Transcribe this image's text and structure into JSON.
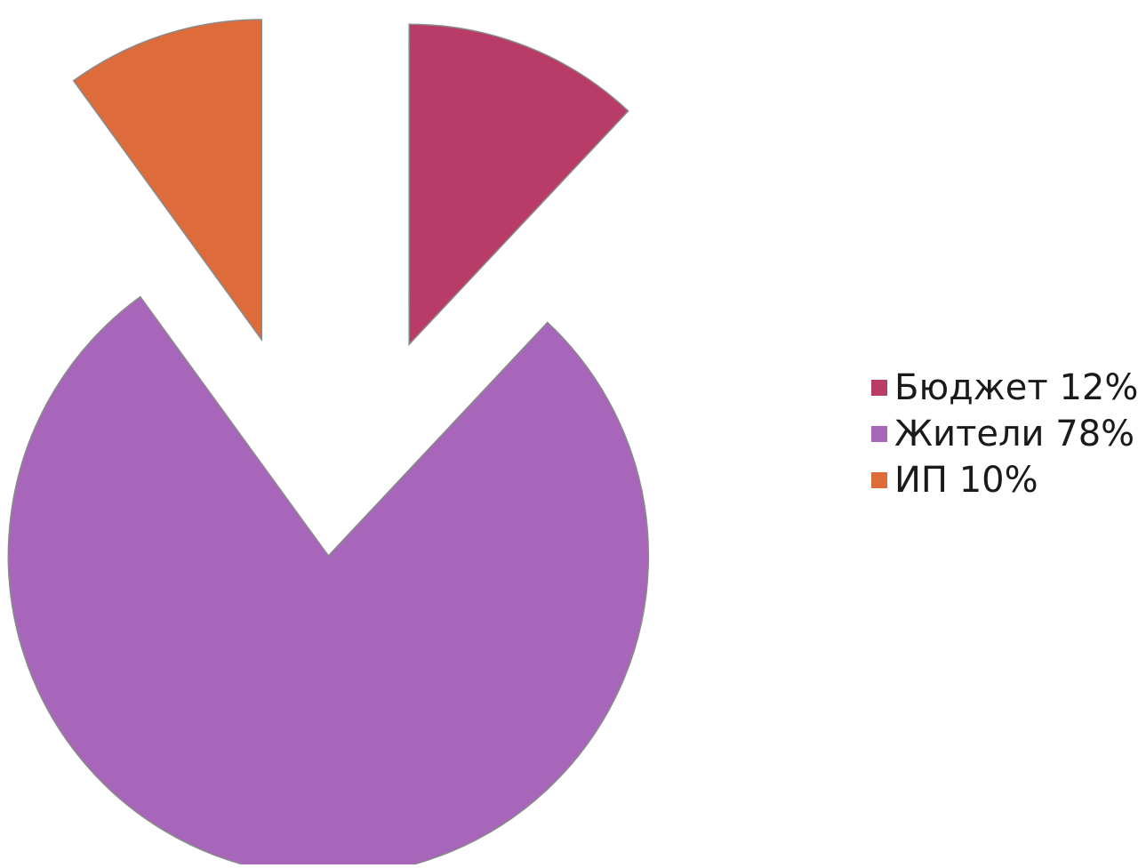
{
  "chart_data": {
    "type": "pie",
    "title": "",
    "slices": [
      {
        "label": "Бюджет",
        "value": 12,
        "value_label": "12%",
        "color": "#B83B68"
      },
      {
        "label": "Жители",
        "value": 78,
        "value_label": "78%",
        "color": "#A866BB"
      },
      {
        "label": "ИП",
        "value": 10,
        "value_label": "10%",
        "color": "#DE6B3A"
      }
    ],
    "exploded": true,
    "legend_position": "right"
  }
}
